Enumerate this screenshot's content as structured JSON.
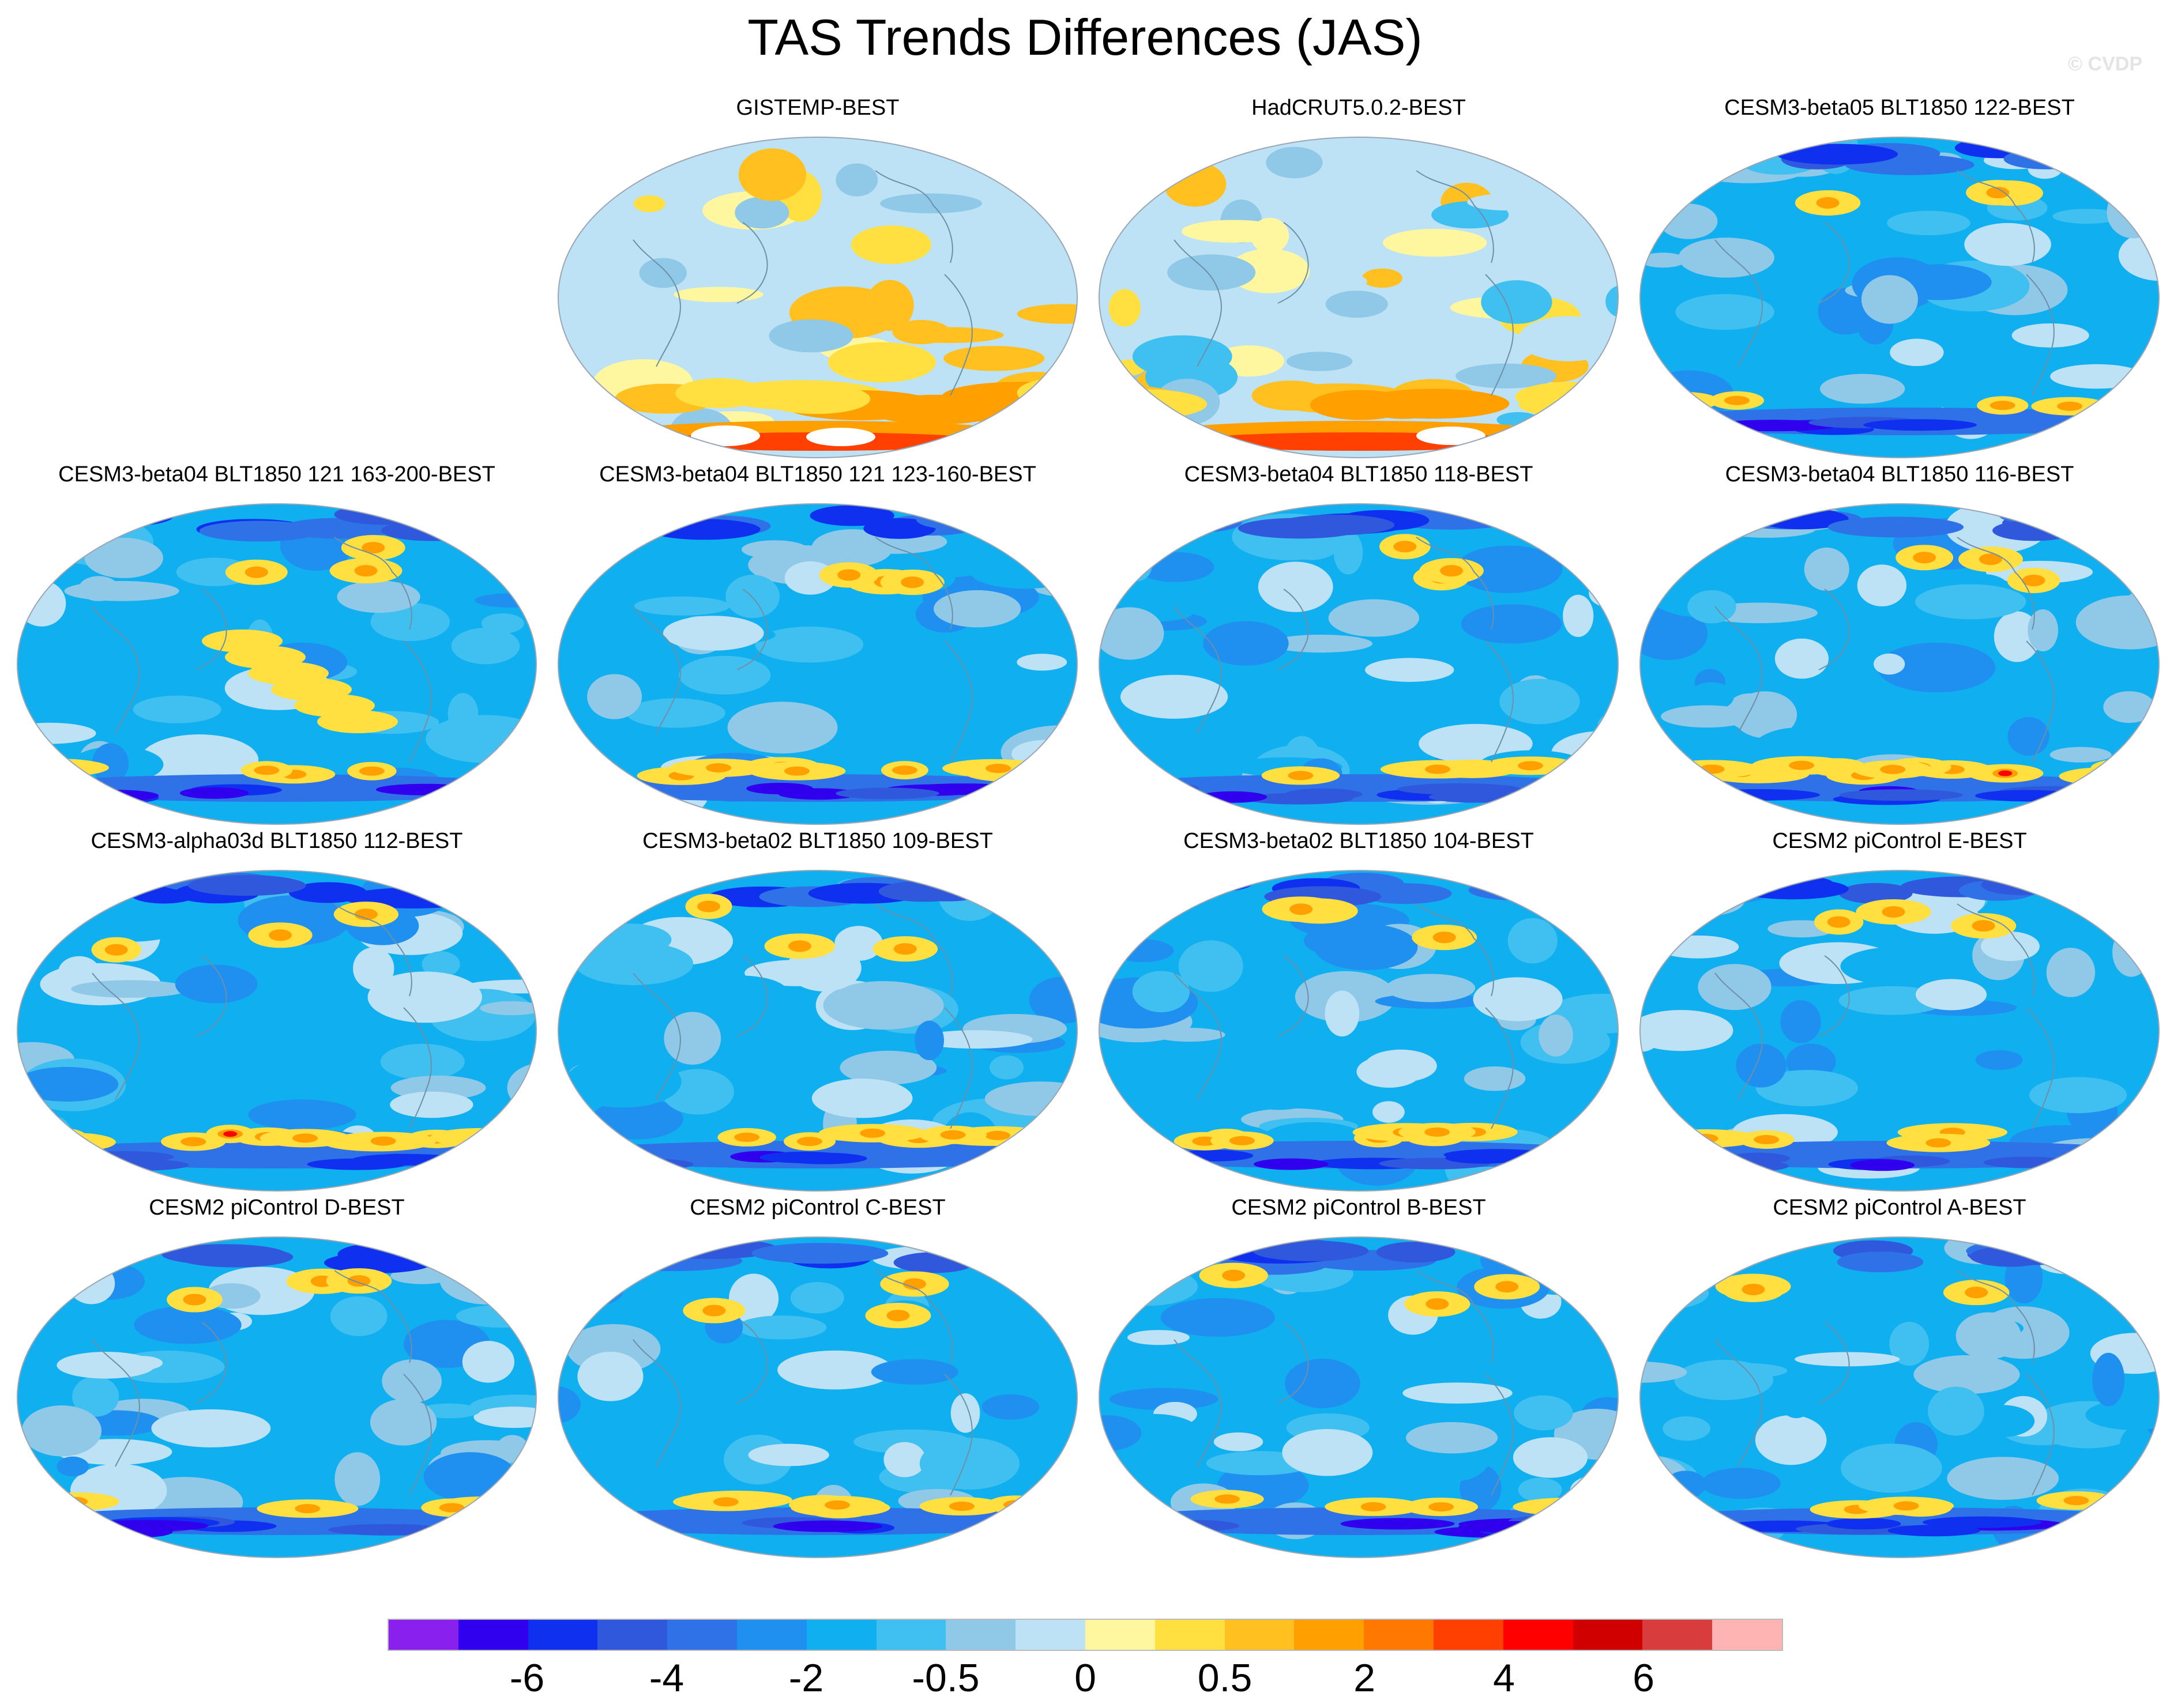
{
  "title": "TAS Trends Differences (JAS)",
  "watermark": "© CVDP",
  "chart_data": {
    "type": "heatmap",
    "projection": "Robinson-style global maps (Pacific-centered)",
    "variable": "TAS trend difference",
    "season": "JAS",
    "layout": {
      "rows": 4,
      "cols": 4,
      "first_cell_empty": true
    },
    "panels": [
      {
        "title": "GISTEMP-BEST",
        "pattern": "warm"
      },
      {
        "title": "HadCRUT5.0.2-BEST",
        "pattern": "warm-north"
      },
      {
        "title": "CESM3-beta05 BLT1850 122-BEST",
        "pattern": "cool"
      },
      {
        "title": "CESM3-beta04 BLT1850 121 163-200-BEST",
        "pattern": "cool-tropical"
      },
      {
        "title": "CESM3-beta04 BLT1850 121 123-160-BEST",
        "pattern": "cool-south"
      },
      {
        "title": "CESM3-beta04 BLT1850 118-BEST",
        "pattern": "cool"
      },
      {
        "title": "CESM3-beta04 BLT1850 116-BEST",
        "pattern": "cool-southwarm"
      },
      {
        "title": "CESM3-alpha03d BLT1850 112-BEST",
        "pattern": "cool-southwarm"
      },
      {
        "title": "CESM3-beta02 BLT1850 109-BEST",
        "pattern": "cool-south"
      },
      {
        "title": "CESM3-beta02 BLT1850 104-BEST",
        "pattern": "cool-south"
      },
      {
        "title": "CESM2 piControl E-BEST",
        "pattern": "cool"
      },
      {
        "title": "CESM2 piControl D-BEST",
        "pattern": "cool"
      },
      {
        "title": "CESM2 piControl C-BEST",
        "pattern": "cool-south"
      },
      {
        "title": "CESM2 piControl B-BEST",
        "pattern": "cool"
      },
      {
        "title": "CESM2 piControl A-BEST",
        "pattern": "cool"
      }
    ],
    "colorbar": {
      "colors": [
        "#8a20ee",
        "#3000ee",
        "#1030f0",
        "#3058dc",
        "#2f72e8",
        "#2090f0",
        "#10b0f0",
        "#40c0f0",
        "#90c8e8",
        "#bde2f5",
        "#fff7a0",
        "#ffe040",
        "#ffc020",
        "#ffa000",
        "#ff7800",
        "#ff4000",
        "#ff0000",
        "#d00000",
        "#d83c3c",
        "#ffb4b4"
      ],
      "tick_labels": [
        "-6",
        "-4",
        "-2",
        "-0.5",
        "0",
        "0.5",
        "2",
        "4",
        "6"
      ],
      "tick_boundaries": [
        2,
        4,
        6,
        8,
        10,
        12,
        14,
        16,
        18
      ]
    }
  }
}
